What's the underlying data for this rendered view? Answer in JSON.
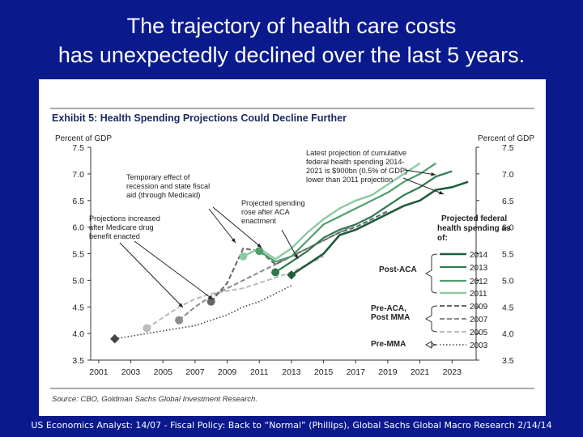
{
  "slide": {
    "title_line1": "The trajectory of health care costs",
    "title_line2": "has unexpectedly declined over the last 5 years.",
    "footer": "US Economics Analyst: 14/07 - Fiscal Policy: Back to “Normal” (Phillips), Global Sachs Global Macro Research 2/14/14"
  },
  "colors": {
    "background": "#0a1a8c",
    "exhibit_title": "#1a2a5e",
    "series_2014": "#1e5c3a",
    "series_2013": "#2e7a4e",
    "series_2012": "#4f9e6c",
    "series_2011": "#8ec9a4",
    "series_2009": "#666666",
    "series_2007": "#8a8a8a",
    "series_2005": "#bbbbbb",
    "series_2003": "#444444"
  },
  "chart_data": {
    "type": "line",
    "title": "Exhibit 5: Health Spending Projections Could Decline Further",
    "ylabel_left": "Percent of GDP",
    "ylabel_right": "Percent of GDP",
    "xlim": [
      2000.5,
      2024.5
    ],
    "ylim": [
      3.5,
      7.5
    ],
    "x_ticks": [
      "2001",
      "2003",
      "2005",
      "2007",
      "2009",
      "2011",
      "2013",
      "2015",
      "2017",
      "2019",
      "2021",
      "2023"
    ],
    "y_ticks": [
      "3.5",
      "4.0",
      "4.5",
      "5.0",
      "5.5",
      "6.0",
      "6.5",
      "7.0",
      "7.5"
    ],
    "legend_title": "Projected federal health spending as of:",
    "source": "Source: CBO, Goldman Sachs Global Investment Research.",
    "series": [
      {
        "name": "2014",
        "group": "Post-ACA",
        "dash": "solid",
        "width": 2.6,
        "marker": 2013,
        "x": [
          2013,
          2014,
          2015,
          2016,
          2017,
          2018,
          2019,
          2020,
          2021,
          2022,
          2023,
          2024
        ],
        "y": [
          5.1,
          5.3,
          5.5,
          5.85,
          5.95,
          6.1,
          6.25,
          6.4,
          6.5,
          6.7,
          6.75,
          6.85
        ]
      },
      {
        "name": "2013",
        "group": "Post-ACA",
        "dash": "solid",
        "width": 2.2,
        "marker": 2012,
        "x": [
          2012,
          2013,
          2014,
          2015,
          2016,
          2017,
          2018,
          2019,
          2020,
          2021,
          2022,
          2023
        ],
        "y": [
          5.15,
          5.35,
          5.55,
          5.8,
          5.95,
          6.05,
          6.2,
          6.4,
          6.6,
          6.75,
          6.95,
          7.05
        ]
      },
      {
        "name": "2012",
        "group": "Post-ACA",
        "dash": "solid",
        "width": 2.2,
        "marker": 2011,
        "x": [
          2011,
          2012,
          2013,
          2014,
          2015,
          2016,
          2017,
          2018,
          2019,
          2020,
          2021,
          2022
        ],
        "y": [
          5.55,
          5.35,
          5.45,
          5.75,
          6.05,
          6.2,
          6.35,
          6.5,
          6.65,
          6.85,
          7.0,
          7.2
        ]
      },
      {
        "name": "2011",
        "group": "Post-ACA",
        "dash": "solid",
        "width": 2.4,
        "marker": 2010,
        "x": [
          2010,
          2011,
          2012,
          2013,
          2014,
          2015,
          2016,
          2017,
          2018,
          2019,
          2020,
          2021
        ],
        "y": [
          5.45,
          5.6,
          5.4,
          5.6,
          5.9,
          6.15,
          6.35,
          6.5,
          6.6,
          6.8,
          7.0,
          7.2
        ]
      },
      {
        "name": "2009",
        "group": "Pre-ACA, Post MMA",
        "dash": "6,3",
        "width": 2.0,
        "marker": 2008,
        "x": [
          2008,
          2009,
          2010,
          2011,
          2012,
          2013,
          2014,
          2015,
          2016,
          2017,
          2018,
          2019
        ],
        "y": [
          4.6,
          4.95,
          5.6,
          5.55,
          5.3,
          5.45,
          5.6,
          5.75,
          5.9,
          6.0,
          6.15,
          6.3
        ]
      },
      {
        "name": "2007",
        "group": "Pre-ACA, Post MMA",
        "dash": "6,3",
        "width": 2.0,
        "marker": 2006,
        "x": [
          2006,
          2007,
          2008,
          2009,
          2010,
          2011,
          2012,
          2013,
          2014,
          2015,
          2016,
          2017
        ],
        "y": [
          4.25,
          4.5,
          4.7,
          4.85,
          5.0,
          5.15,
          5.3,
          5.45,
          5.6,
          5.75,
          5.9,
          6.05
        ]
      },
      {
        "name": "2005",
        "group": "Pre-ACA, Post MMA",
        "dash": "6,3",
        "width": 2.0,
        "marker": 2004,
        "x": [
          2004,
          2005,
          2006,
          2007,
          2008,
          2009,
          2010,
          2011,
          2012,
          2013,
          2014,
          2015
        ],
        "y": [
          4.1,
          4.3,
          4.5,
          4.65,
          4.75,
          4.8,
          4.85,
          4.95,
          5.05,
          5.15,
          5.3,
          5.45
        ]
      },
      {
        "name": "2003",
        "group": "Pre-MMA",
        "dash": "1.5,2.5",
        "width": 1.6,
        "marker": 2002,
        "x": [
          2002,
          2003,
          2004,
          2005,
          2006,
          2007,
          2008,
          2009,
          2010,
          2011,
          2012,
          2013
        ],
        "y": [
          3.9,
          3.95,
          4.0,
          4.05,
          4.1,
          4.15,
          4.25,
          4.35,
          4.5,
          4.6,
          4.75,
          4.9
        ]
      }
    ],
    "legend_groups": [
      {
        "label": "Post-ACA",
        "series": [
          "2014",
          "2013",
          "2012",
          "2011"
        ]
      },
      {
        "label": "Pre-ACA, Post MMA",
        "series": [
          "2009",
          "2007",
          "2005"
        ]
      },
      {
        "label": "Pre-MMA",
        "series": [
          "2003"
        ]
      }
    ],
    "annotations": [
      {
        "id": "latest",
        "lines": [
          "Latest projection of cumulative",
          "federal health spending 2014-",
          "2021 is $900bn (0.5% of GDP)",
          "lower than 2011 projection"
        ]
      },
      {
        "id": "temporary",
        "lines": [
          "Temporary effect of",
          "recession and state fiscal",
          "aid (through Medicaid)"
        ]
      },
      {
        "id": "aca",
        "lines": [
          "Projected spending",
          "rose after ACA",
          "enactment"
        ]
      },
      {
        "id": "mma",
        "lines": [
          "Projections increased",
          "after Medicare drug",
          "benefit enacted"
        ]
      }
    ]
  }
}
